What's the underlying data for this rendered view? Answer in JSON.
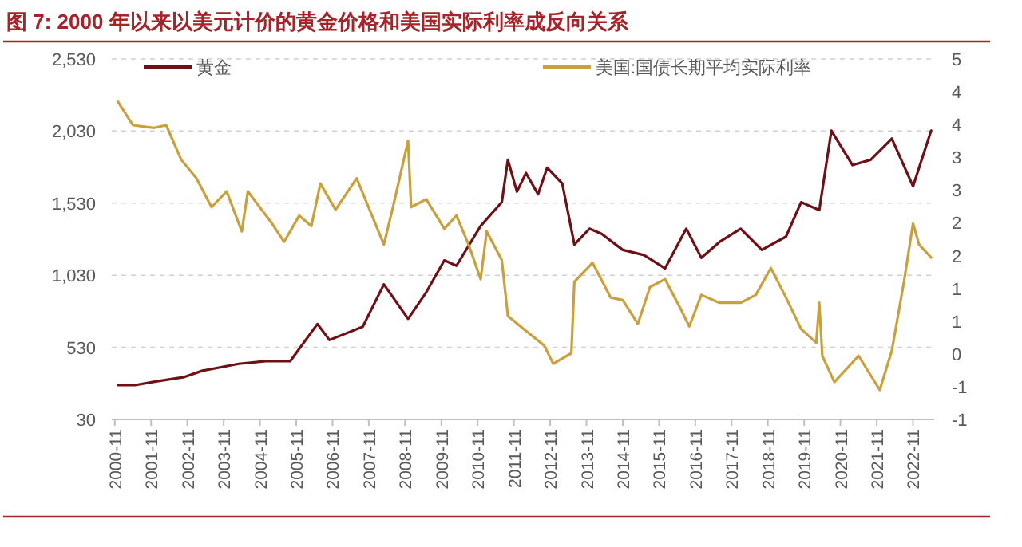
{
  "chart_data": {
    "type": "line",
    "title": "图 7: 2000 年以来以美元计价的黄金价格和美国实际利率成反向关系",
    "series": [
      {
        "name": "黄金",
        "color": "#6e1016",
        "x": [
          "2000-12",
          "2001-06",
          "2002-01",
          "2002-10",
          "2003-04",
          "2004-04",
          "2005-01",
          "2005-09",
          "2006-06",
          "2006-10",
          "2007-09",
          "2008-04",
          "2008-12",
          "2009-06",
          "2009-12",
          "2010-04",
          "2010-12",
          "2011-07",
          "2011-09",
          "2011-12",
          "2012-03",
          "2012-07",
          "2012-10",
          "2013-03",
          "2013-07",
          "2013-12",
          "2014-04",
          "2014-11",
          "2015-06",
          "2016-01",
          "2016-08",
          "2017-01",
          "2017-07",
          "2018-02",
          "2018-09",
          "2019-05",
          "2019-10",
          "2020-04",
          "2020-08",
          "2021-03",
          "2021-09",
          "2022-04",
          "2022-11",
          "2023-05"
        ],
        "values": [
          269,
          269,
          295,
          324,
          368,
          416,
          434,
          434,
          692,
          581,
          673,
          967,
          728,
          912,
          1133,
          1096,
          1372,
          1537,
          1831,
          1610,
          1739,
          1592,
          1776,
          1666,
          1243,
          1353,
          1317,
          1206,
          1170,
          1078,
          1353,
          1151,
          1261,
          1353,
          1206,
          1298,
          1537,
          1482,
          2033,
          1794,
          1831,
          1978,
          1647,
          2033
        ]
      },
      {
        "name": "美国:国债长期平均实际利率",
        "color": "#c9a03c",
        "axis": "y2",
        "x": [
          "2000-12",
          "2001-05",
          "2001-12",
          "2002-04",
          "2002-09",
          "2003-02",
          "2003-07",
          "2003-12",
          "2004-05",
          "2004-07",
          "2005-03",
          "2005-07",
          "2005-12",
          "2006-04",
          "2006-07",
          "2006-12",
          "2007-07",
          "2008-04",
          "2008-07",
          "2008-12",
          "2009-01",
          "2009-06",
          "2009-12",
          "2010-04",
          "2010-08",
          "2010-12",
          "2011-02",
          "2011-07",
          "2011-09",
          "2012-03",
          "2012-09",
          "2012-12",
          "2013-06",
          "2013-07",
          "2014-01",
          "2014-07",
          "2014-11",
          "2015-04",
          "2015-08",
          "2016-01",
          "2016-06",
          "2016-09",
          "2017-01",
          "2017-07",
          "2018-02",
          "2018-07",
          "2018-12",
          "2019-05",
          "2019-10",
          "2020-03",
          "2020-04",
          "2020-05",
          "2020-09",
          "2021-05",
          "2021-12",
          "2022-04",
          "2022-08",
          "2022-11",
          "2023-01",
          "2023-05"
        ],
        "values": [
          3.85,
          3.49,
          3.45,
          3.49,
          2.96,
          2.68,
          2.24,
          2.48,
          1.87,
          2.48,
          1.99,
          1.71,
          2.11,
          1.95,
          2.6,
          2.2,
          2.68,
          1.67,
          2.24,
          3.25,
          2.24,
          2.36,
          1.91,
          2.11,
          1.67,
          1.14,
          1.87,
          1.43,
          0.58,
          0.35,
          0.13,
          -0.15,
          0.01,
          1.1,
          1.39,
          0.86,
          0.82,
          0.46,
          1.02,
          1.14,
          0.7,
          0.42,
          0.9,
          0.78,
          0.78,
          0.9,
          1.31,
          0.86,
          0.38,
          0.17,
          0.78,
          -0.03,
          -0.43,
          -0.03,
          -0.55,
          0.05,
          1.1,
          1.99,
          1.67,
          1.47
        ]
      }
    ],
    "xlim": [
      "2000-10",
      "2023-06"
    ],
    "xticks": [
      "2000-11",
      "2001-11",
      "2002-11",
      "2003-11",
      "2004-11",
      "2005-11",
      "2006-11",
      "2007-11",
      "2008-11",
      "2009-11",
      "2010-11",
      "2011-11",
      "2012-11",
      "2013-11",
      "2014-11",
      "2015-11",
      "2016-11",
      "2017-11",
      "2018-11",
      "2019-11",
      "2020-11",
      "2021-11",
      "2022-11"
    ],
    "ylim": [
      30,
      2530
    ],
    "yticks": [
      {
        "value": 30,
        "label": "30"
      },
      {
        "value": 530,
        "label": "530"
      },
      {
        "value": 1030,
        "label": "1,030"
      },
      {
        "value": 1530,
        "label": "1,530"
      },
      {
        "value": 2030,
        "label": "2,030"
      },
      {
        "value": 2530,
        "label": "2,530"
      }
    ],
    "y2lim": [
      -1,
      4.5
    ],
    "y2ticks": [
      {
        "value": -1,
        "label": "-1"
      },
      {
        "value": -0.5,
        "label": "-1"
      },
      {
        "value": 0,
        "label": "0"
      },
      {
        "value": 0.5,
        "label": "1"
      },
      {
        "value": 1,
        "label": "1"
      },
      {
        "value": 1.5,
        "label": "2"
      },
      {
        "value": 2,
        "label": "2"
      },
      {
        "value": 2.5,
        "label": "3"
      },
      {
        "value": 3,
        "label": "3"
      },
      {
        "value": 3.5,
        "label": "4"
      },
      {
        "value": 4,
        "label": "4"
      },
      {
        "value": 4.5,
        "label": "5"
      }
    ],
    "grid": "y",
    "legend": "top"
  }
}
